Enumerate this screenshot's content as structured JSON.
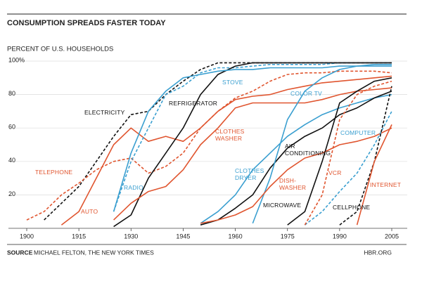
{
  "chart_data": {
    "type": "line",
    "title": "CONSUMPTION SPREADS FASTER TODAY",
    "subtitle": "PERCENT OF U.S. HOUSEHOLDS",
    "source_label": "SOURCE",
    "source": "MICHAEL FELTON, THE NEW YORK TIMES",
    "credit": "HBR.ORG",
    "x": [
      1900,
      1905,
      1910,
      1915,
      1920,
      1925,
      1930,
      1935,
      1940,
      1945,
      1950,
      1955,
      1960,
      1965,
      1970,
      1975,
      1980,
      1985,
      1990,
      1995,
      2000,
      2005
    ],
    "xlim": [
      1900,
      2005
    ],
    "xticks": [
      1900,
      1915,
      1930,
      1945,
      1960,
      1975,
      1990,
      2005
    ],
    "ylim": [
      0,
      100
    ],
    "yticks": [
      20,
      40,
      60,
      80,
      {
        "value": 100,
        "label": "100%"
      }
    ],
    "grid": true,
    "series": [
      {
        "name": "ELECTRICITY",
        "color": "#111111",
        "dashed": true,
        "values": [
          null,
          5,
          15,
          25,
          40,
          55,
          68,
          70,
          80,
          88,
          95,
          99,
          99,
          99,
          99,
          99,
          99,
          99,
          99,
          99,
          99,
          99
        ]
      },
      {
        "name": "TELEPHONE",
        "color": "#e0552f",
        "dashed": true,
        "values": [
          5,
          10,
          20,
          27,
          35,
          40,
          42,
          33,
          37,
          45,
          60,
          70,
          78,
          82,
          88,
          92,
          93,
          93,
          94,
          94,
          94,
          93
        ]
      },
      {
        "name": "AUTO",
        "color": "#e0552f",
        "dashed": false,
        "values": [
          null,
          null,
          2,
          10,
          30,
          50,
          60,
          52,
          55,
          52,
          60,
          70,
          77,
          79,
          80,
          83,
          85,
          87,
          88,
          89,
          90,
          91
        ]
      },
      {
        "name": "RADIO",
        "color": "#3a9fd0",
        "dashed": true,
        "values": [
          null,
          null,
          null,
          null,
          null,
          10,
          40,
          60,
          80,
          85,
          93,
          96,
          96,
          97,
          98,
          98,
          98,
          98,
          99,
          99,
          99,
          99
        ]
      },
      {
        "name": "REFRIGERATOR",
        "color": "#111111",
        "dashed": false,
        "values": [
          null,
          null,
          null,
          null,
          null,
          1,
          8,
          30,
          45,
          60,
          80,
          92,
          97,
          99,
          99,
          99,
          99,
          99,
          99,
          99,
          99,
          99
        ]
      },
      {
        "name": "STOVE",
        "color": "#3a9fd0",
        "dashed": false,
        "values": [
          null,
          null,
          null,
          null,
          null,
          10,
          45,
          70,
          82,
          90,
          92,
          94,
          95,
          95,
          96,
          96,
          96,
          96,
          97,
          97,
          97,
          97
        ]
      },
      {
        "name": "CLOTHES WASHER",
        "color": "#e0552f",
        "dashed": false,
        "values": [
          null,
          null,
          null,
          null,
          null,
          5,
          15,
          22,
          25,
          35,
          50,
          60,
          72,
          75,
          75,
          75,
          75,
          77,
          80,
          82,
          83,
          84
        ]
      },
      {
        "name": "CLOTHES DRYER",
        "color": "#3a9fd0",
        "dashed": false,
        "values": [
          null,
          null,
          null,
          null,
          null,
          null,
          null,
          null,
          null,
          null,
          3,
          10,
          20,
          35,
          45,
          55,
          62,
          68,
          72,
          75,
          78,
          80
        ]
      },
      {
        "name": "AIR CONDITIONING",
        "color": "#111111",
        "dashed": false,
        "values": [
          null,
          null,
          null,
          null,
          null,
          null,
          null,
          null,
          null,
          null,
          2,
          5,
          12,
          20,
          36,
          48,
          55,
          60,
          68,
          72,
          78,
          82
        ]
      },
      {
        "name": "COLOR TV",
        "color": "#3a9fd0",
        "dashed": false,
        "values": [
          null,
          null,
          null,
          null,
          null,
          null,
          null,
          null,
          null,
          null,
          null,
          null,
          null,
          3,
          30,
          65,
          82,
          90,
          95,
          97,
          98,
          98
        ]
      },
      {
        "name": "DISH-WASHER",
        "color": "#e0552f",
        "dashed": false,
        "values": [
          null,
          null,
          null,
          null,
          null,
          null,
          null,
          null,
          null,
          null,
          3,
          5,
          8,
          13,
          25,
          35,
          42,
          45,
          50,
          52,
          55,
          60
        ]
      },
      {
        "name": "MICROWAVE",
        "color": "#111111",
        "dashed": false,
        "values": [
          null,
          null,
          null,
          null,
          null,
          null,
          null,
          null,
          null,
          null,
          null,
          null,
          null,
          null,
          null,
          2,
          10,
          40,
          75,
          82,
          88,
          90
        ]
      },
      {
        "name": "COMPUTER",
        "color": "#3a9fd0",
        "dashed": true,
        "values": [
          null,
          null,
          null,
          null,
          null,
          null,
          null,
          null,
          null,
          null,
          null,
          null,
          null,
          null,
          null,
          null,
          2,
          10,
          22,
          33,
          50,
          70
        ]
      },
      {
        "name": "VCR",
        "color": "#e0552f",
        "dashed": true,
        "values": [
          null,
          null,
          null,
          null,
          null,
          null,
          null,
          null,
          null,
          null,
          null,
          null,
          null,
          null,
          null,
          null,
          2,
          20,
          65,
          80,
          85,
          88
        ]
      },
      {
        "name": "CELLPHONE",
        "color": "#111111",
        "dashed": true,
        "values": [
          null,
          null,
          null,
          null,
          null,
          null,
          null,
          null,
          null,
          null,
          null,
          null,
          null,
          null,
          null,
          null,
          null,
          null,
          2,
          10,
          40,
          85
        ]
      },
      {
        "name": "INTERNET",
        "color": "#e0552f",
        "dashed": false,
        "values": [
          null,
          null,
          null,
          null,
          null,
          null,
          null,
          null,
          null,
          null,
          null,
          null,
          null,
          null,
          null,
          null,
          null,
          null,
          null,
          2,
          40,
          62
        ]
      }
    ]
  }
}
